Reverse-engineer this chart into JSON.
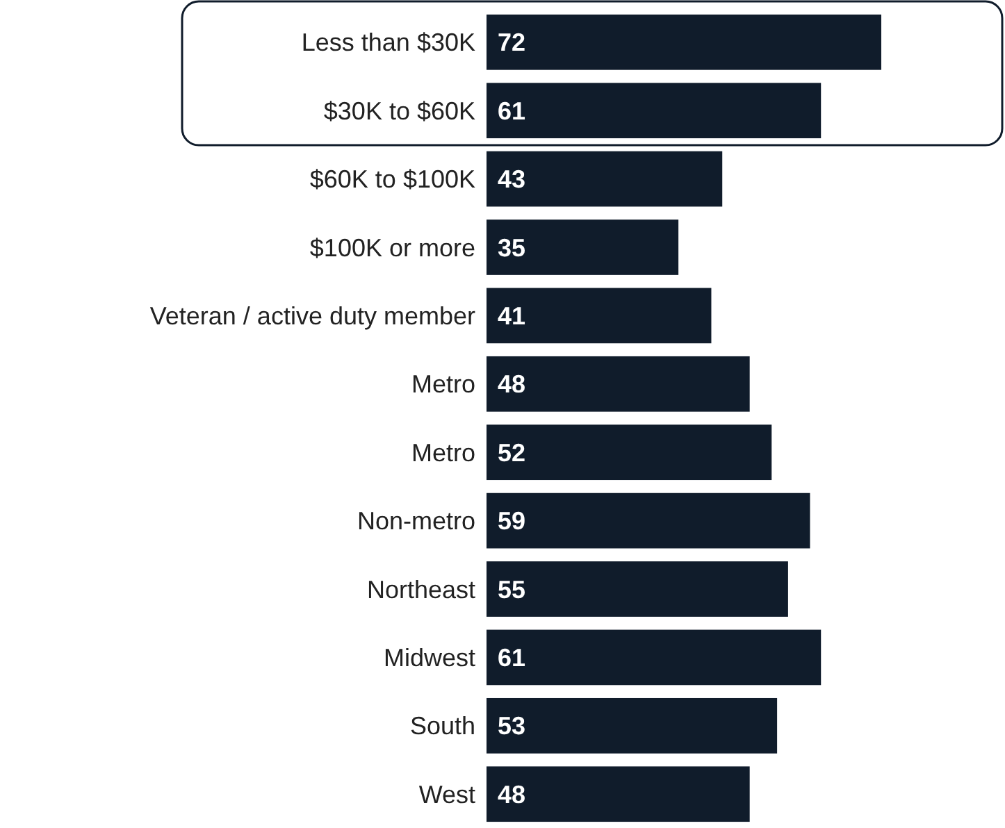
{
  "chart_data": {
    "type": "bar",
    "orientation": "horizontal",
    "data_labels": true,
    "color": "#101c2b",
    "categories": [
      "Less than $30K",
      "$30K to $60K",
      "$60K to $100K",
      "$100K or more",
      "Veteran / active duty member",
      "Metro",
      "Metro",
      "Non-metro",
      "Northeast",
      "Midwest",
      "South",
      "West"
    ],
    "values": [
      72,
      61,
      43,
      35,
      41,
      48,
      52,
      59,
      55,
      61,
      53,
      48
    ]
  }
}
